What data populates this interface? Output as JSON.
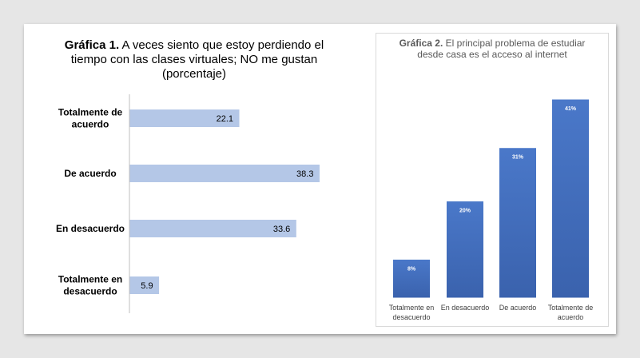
{
  "chart_data": [
    {
      "type": "bar",
      "orientation": "horizontal",
      "title_bold": "Gráfica 1.",
      "title": "A veces siento que estoy perdiendo  el tiempo con las clases virtuales;  NO me gustan (porcentaje)",
      "categories": [
        "Totalmente de acuerdo",
        "De acuerdo",
        "En desacuerdo",
        "Totalmente en desacuerdo"
      ],
      "values": [
        22.1,
        38.3,
        33.6,
        5.9
      ],
      "data_labels": [
        "22.1",
        "38.3",
        "33.6",
        "5.9"
      ],
      "xlim": [
        0,
        40
      ],
      "grid": false,
      "bar_color": "#b4c7e7"
    },
    {
      "type": "bar",
      "orientation": "vertical",
      "title_bold": "Gráfica 2.",
      "title": "El principal problema de estudiar desde casa es el acceso al internet",
      "categories": [
        "Totalmente en desacuerdo",
        "En desacuerdo",
        "De acuerdo",
        "Totalmente de acuerdo"
      ],
      "values": [
        8,
        20,
        31,
        41
      ],
      "data_labels": [
        "8%",
        "20%",
        "31%",
        "41%"
      ],
      "ylim": [
        0,
        41
      ],
      "grid": false,
      "bar_color": "#4472c4"
    }
  ]
}
